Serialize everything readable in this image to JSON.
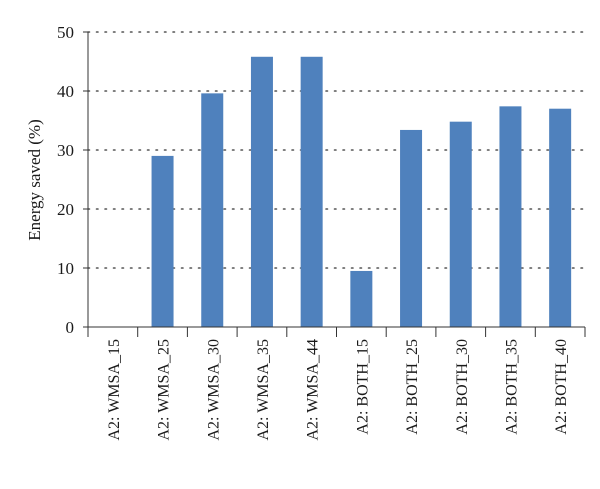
{
  "chart_data": {
    "type": "bar",
    "title": "",
    "xlabel": "",
    "ylabel": "Energy saved (%)",
    "ylim": [
      0,
      50
    ],
    "yticks": [
      0,
      10,
      20,
      30,
      40,
      50
    ],
    "grid": true,
    "grid_style": "dotted-horizontal",
    "categories": [
      "A2: WMSA_15",
      "A2: WMSA_25",
      "A2: WMSA_30",
      "A2: WMSA_35",
      "A2: WMSA_44",
      "A2: BOTH_15",
      "A2: BOTH_25",
      "A2: BOTH_30",
      "A2: BOTH_35",
      "A2: BOTH_40"
    ],
    "values": [
      0,
      29,
      39.6,
      45.8,
      45.8,
      9.5,
      33.4,
      34.8,
      37.4,
      37
    ],
    "bar_color": "#4f81bd"
  }
}
